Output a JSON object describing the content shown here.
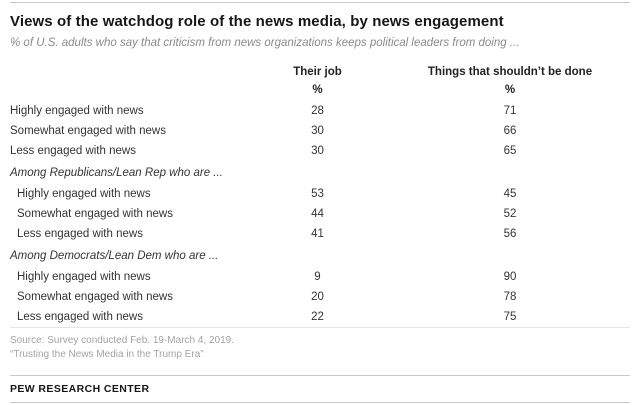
{
  "header": {
    "title": "Views of the watchdog role of the news media, by news engagement",
    "subtitle": "% of U.S. adults who say that criticism from news organizations keeps political leaders from doing ..."
  },
  "table": {
    "col1_header": "Their job",
    "col2_header": "Things that shouldn’t be done",
    "pct": "%",
    "rows": [
      {
        "type": "data",
        "indent": false,
        "label": "Highly engaged with news",
        "v1": "28",
        "v2": "71"
      },
      {
        "type": "data",
        "indent": false,
        "label": "Somewhat engaged with news",
        "v1": "30",
        "v2": "66"
      },
      {
        "type": "data",
        "indent": false,
        "label": "Less engaged with news",
        "v1": "30",
        "v2": "65"
      },
      {
        "type": "section",
        "label": "Among Republicans/Lean Rep who are ..."
      },
      {
        "type": "data",
        "indent": true,
        "label": "Highly engaged with news",
        "v1": "53",
        "v2": "45"
      },
      {
        "type": "data",
        "indent": true,
        "label": "Somewhat engaged with news",
        "v1": "44",
        "v2": "52"
      },
      {
        "type": "data",
        "indent": true,
        "label": "Less engaged with news",
        "v1": "41",
        "v2": "56"
      },
      {
        "type": "section",
        "label": "Among Democrats/Lean Dem who are ..."
      },
      {
        "type": "data",
        "indent": true,
        "label": "Highly engaged with news",
        "v1": "9",
        "v2": "90"
      },
      {
        "type": "data",
        "indent": true,
        "label": "Somewhat engaged with news",
        "v1": "20",
        "v2": "78"
      },
      {
        "type": "data",
        "indent": true,
        "label": "Less engaged with news",
        "v1": "22",
        "v2": "75"
      }
    ]
  },
  "footer": {
    "source": "Source: Survey conducted Feb. 19-March 4, 2019.",
    "report": "“Trusting the News Media in the Trump Era”",
    "brand": "PEW RESEARCH CENTER"
  },
  "chart_data": {
    "type": "table",
    "title": "Views of the watchdog role of the news media, by news engagement",
    "subtitle": "% of U.S. adults who say that criticism from news organizations keeps political leaders from doing ...",
    "units": "%",
    "columns": [
      "Their job",
      "Things that shouldn’t be done"
    ],
    "sections": [
      {
        "section": "",
        "rows": [
          {
            "label": "Highly engaged with news",
            "their_job": 28,
            "things_that_shouldnt_be_done": 71
          },
          {
            "label": "Somewhat engaged with news",
            "their_job": 30,
            "things_that_shouldnt_be_done": 66
          },
          {
            "label": "Less engaged with news",
            "their_job": 30,
            "things_that_shouldnt_be_done": 65
          }
        ]
      },
      {
        "section": "Among Republicans/Lean Rep who are ...",
        "rows": [
          {
            "label": "Highly engaged with news",
            "their_job": 53,
            "things_that_shouldnt_be_done": 45
          },
          {
            "label": "Somewhat engaged with news",
            "their_job": 44,
            "things_that_shouldnt_be_done": 52
          },
          {
            "label": "Less engaged with news",
            "their_job": 41,
            "things_that_shouldnt_be_done": 56
          }
        ]
      },
      {
        "section": "Among Democrats/Lean Dem who are ...",
        "rows": [
          {
            "label": "Highly engaged with news",
            "their_job": 9,
            "things_that_shouldnt_be_done": 90
          },
          {
            "label": "Somewhat engaged with news",
            "their_job": 20,
            "things_that_shouldnt_be_done": 78
          },
          {
            "label": "Less engaged with news",
            "their_job": 22,
            "things_that_shouldnt_be_done": 75
          }
        ]
      }
    ]
  }
}
